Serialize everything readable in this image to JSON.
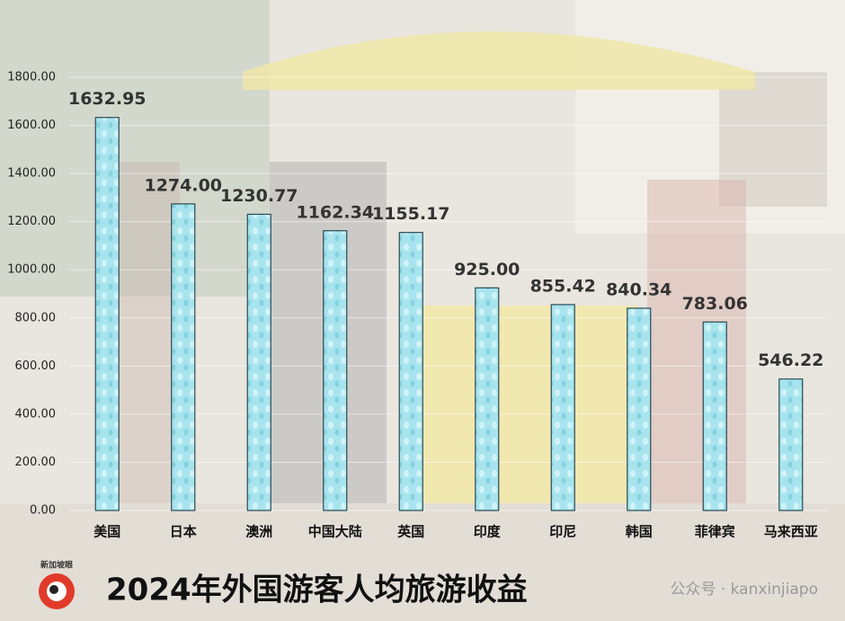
{
  "chart_data": {
    "type": "bar",
    "title": "2024年外国游客人均旅游收益",
    "categories": [
      "美国",
      "日本",
      "澳洲",
      "中国大陆",
      "英国",
      "印度",
      "印尼",
      "韩国",
      "菲律宾",
      "马来西亚"
    ],
    "values": [
      1632.95,
      1274.0,
      1230.77,
      1162.34,
      1155.17,
      925.0,
      855.42,
      840.34,
      783.06,
      546.22
    ],
    "value_labels": [
      "1632.95",
      "1274.00",
      "1230.77",
      "1162.34",
      "1155.17",
      "925.00",
      "855.42",
      "840.34",
      "783.06",
      "546.22"
    ],
    "color": "#a8e4ee",
    "ylim": [
      0,
      1800
    ],
    "yticks": [
      {
        "value": 0,
        "label": "0.00"
      },
      {
        "value": 200,
        "label": "200.00"
      },
      {
        "value": 400,
        "label": "400.00"
      },
      {
        "value": 600,
        "label": "600.00"
      },
      {
        "value": 800,
        "label": "800.00"
      },
      {
        "value": 1000,
        "label": "1000.00"
      },
      {
        "value": 1200,
        "label": "1200.00"
      },
      {
        "value": 1400,
        "label": "1400.00"
      },
      {
        "value": 1600,
        "label": "1600.00"
      },
      {
        "value": 1800,
        "label": "1800.00"
      }
    ],
    "grid": true
  },
  "logo": "新加坡眼",
  "watermark": "公众号 · kanxinjiapo"
}
